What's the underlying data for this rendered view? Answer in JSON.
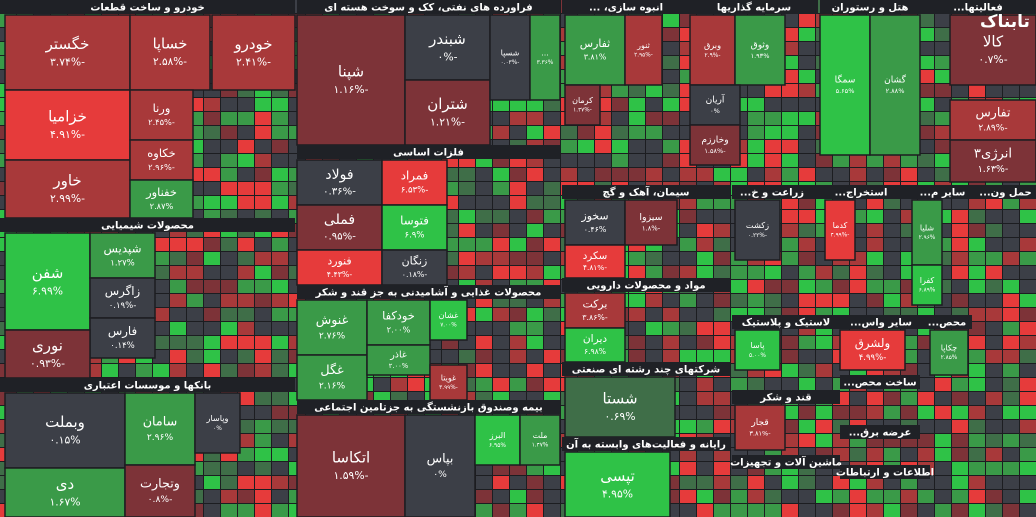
{
  "chart_data": {
    "type": "treemap",
    "watermark": "تابناک",
    "sectors": [
      {
        "name": "خودرو و ساخت قطعات",
        "tiles": [
          {
            "name": "خگستر",
            "value": -3.74,
            "value_label": "-۳.۷۴%"
          },
          {
            "name": "خساپا",
            "value": -2.58,
            "value_label": "-۲.۵۸%"
          },
          {
            "name": "خودرو",
            "value": -2.41,
            "value_label": "-۲.۴۱%"
          },
          {
            "name": "خزامیا",
            "value": -4.91,
            "value_label": "-۴.۹۱%"
          },
          {
            "name": "خاور",
            "value": -2.99,
            "value_label": "-۲.۹۹%"
          },
          {
            "name": "ورنا",
            "value": -2.45,
            "value_label": "-۲.۴۵%"
          },
          {
            "name": "خکاوه",
            "value": -2.96,
            "value_label": "-۲.۹۶%"
          },
          {
            "name": "خفناور",
            "value": 2.87,
            "value_label": "۲.۸۷%"
          }
        ]
      },
      {
        "name": "محصولات شیمیایی",
        "tiles": [
          {
            "name": "شفن",
            "value": 6.99,
            "value_label": "۶.۹۹%"
          },
          {
            "name": "شپدیس",
            "value": 1.27,
            "value_label": "۱.۲۷%"
          },
          {
            "name": "زاگرس",
            "value": -0.19,
            "value_label": "-۰.۱۹%"
          },
          {
            "name": "فارس",
            "value": 0.14,
            "value_label": "۰.۱۴%"
          },
          {
            "name": "نوری",
            "value": -0.93,
            "value_label": "-۰.۹۳%"
          }
        ]
      },
      {
        "name": "بانکها و موسسات اعتباری",
        "tiles": [
          {
            "name": "وبملت",
            "value": 0.15,
            "value_label": "۰.۱۵%"
          },
          {
            "name": "دی",
            "value": 1.67,
            "value_label": "۱.۶۷%"
          },
          {
            "name": "سامان",
            "value": 2.96,
            "value_label": "۲.۹۶%"
          },
          {
            "name": "وتجارت",
            "value": -0.8,
            "value_label": "-۰.۸%"
          },
          {
            "name": "وپاسار",
            "value": 0,
            "value_label": "۰%"
          }
        ]
      },
      {
        "name": "فراورده های نفتی، کک و سوخت هسته ای",
        "tiles": [
          {
            "name": "شپنا",
            "value": -1.16,
            "value_label": "-۱.۱۶%"
          },
          {
            "name": "شبندر",
            "value": 0,
            "value_label": "-۰%"
          },
          {
            "name": "شتران",
            "value": -1.21,
            "value_label": "-۱.۲۱%"
          },
          {
            "name": "شسپا",
            "value": -0.03,
            "value_label": "-۰.۰۳%"
          },
          {
            "name": "...",
            "value": 3.36,
            "value_label": "۳.۳۶%"
          }
        ]
      },
      {
        "name": "فلزات اساسی",
        "tiles": [
          {
            "name": "فولاد",
            "value": -0.36,
            "value_label": "-۰.۳۶%"
          },
          {
            "name": "فملی",
            "value": -0.95,
            "value_label": "-۰.۹۵%"
          },
          {
            "name": "فنورد",
            "value": -4.43,
            "value_label": "-۴.۴۳%"
          },
          {
            "name": "فمراد",
            "value": -6.53,
            "value_label": "-۶.۵۳%"
          },
          {
            "name": "فتوسا",
            "value": 6.9,
            "value_label": "۶.۹%"
          },
          {
            "name": "زنگان",
            "value": -0.18,
            "value_label": "-۰.۱۸%"
          }
        ]
      },
      {
        "name": "محصولات غذایی و آشامیدنی به جز قند و شکر",
        "tiles": [
          {
            "name": "غنوش",
            "value": 2.76,
            "value_label": "۲.۷۶%"
          },
          {
            "name": "غگل",
            "value": 2.16,
            "value_label": "۲.۱۶%"
          },
          {
            "name": "خودکفا",
            "value": 2.0,
            "value_label": "۲.۰۰%"
          },
          {
            "name": "غاذر",
            "value": 2.0,
            "value_label": "۲.۰۰%"
          },
          {
            "name": "غشان",
            "value": 7.0,
            "value_label": "۷.۰۰%"
          },
          {
            "name": "غویتا",
            "value": -3.99,
            "value_label": "-۳.۹۹%"
          }
        ]
      },
      {
        "name": "بیمه وصندوق بازنشستگی به جزتامین اجتماعی",
        "tiles": [
          {
            "name": "اتکاسا",
            "value": -1.59,
            "value_label": "-۱.۵۹%"
          },
          {
            "name": "بپاس",
            "value": 0,
            "value_label": "۰%"
          },
          {
            "name": "البرز",
            "value": 6.95,
            "value_label": "۶.۹۵%"
          },
          {
            "name": "ملت",
            "value": 1.47,
            "value_label": "۱.۴۷%"
          }
        ]
      },
      {
        "name": "انبوه سازی، ...",
        "tiles": [
          {
            "name": "ثفارس",
            "value": 3.81,
            "value_label": "۳.۸۱%"
          },
          {
            "name": "ثنور",
            "value": -2.95,
            "value_label": "-۲.۹۵%"
          },
          {
            "name": "کرمان",
            "value": -1.47,
            "value_label": "-۱.۴۷%"
          }
        ]
      },
      {
        "name": "سرمایه گذاریها",
        "tiles": [
          {
            "name": "وبرق",
            "value": -2.9,
            "value_label": "-۲.۹%"
          },
          {
            "name": "وثوق",
            "value": 1.93,
            "value_label": "۱.۹۳%"
          },
          {
            "name": "آریان",
            "value": 0,
            "value_label": "۰%"
          },
          {
            "name": "وخارزم",
            "value": -1.58,
            "value_label": "-۱.۵۸%"
          }
        ]
      },
      {
        "name": "هتل و رستوران",
        "tiles": [
          {
            "name": "سمگا",
            "value": 5.65,
            "value_label": "۵.۶۵%"
          },
          {
            "name": "گشان",
            "value": 2.88,
            "value_label": "۲.۸۸%"
          }
        ]
      },
      {
        "name": "فعالیتها...",
        "tiles": [
          {
            "name": "کالا",
            "value": -0.7,
            "value_label": "-۰.۷%"
          },
          {
            "name": "تفارس",
            "value": -2.89,
            "value_label": "-۲.۸۹%"
          },
          {
            "name": "انرژی۳",
            "value": -1.63,
            "value_label": "-۱.۶۳%"
          }
        ]
      },
      {
        "name": "سیمان، آهک و گچ",
        "tiles": [
          {
            "name": "سخوز",
            "value": 0.46,
            "value_label": "۰.۴۶%"
          },
          {
            "name": "سیزوا",
            "value": -1.8,
            "value_label": "-۱.۸%"
          },
          {
            "name": "سکرد",
            "value": -4.81,
            "value_label": "-۴.۸۱%"
          }
        ]
      },
      {
        "name": "مواد و محصولات دارویی",
        "tiles": [
          {
            "name": "برکت",
            "value": -3.86,
            "value_label": "-۳.۸۶%"
          },
          {
            "name": "دیران",
            "value": 6.98,
            "value_label": "۶.۹۸%"
          }
        ]
      },
      {
        "name": "شرکتهای چند رشته ای صنعتی",
        "tiles": [
          {
            "name": "شستا",
            "value": 0.69,
            "value_label": "۰.۶۹%"
          }
        ]
      },
      {
        "name": "رایانه و فعالیت‌های وابسته به آن",
        "tiles": [
          {
            "name": "تپسی",
            "value": 4.95,
            "value_label": "۴.۹۵%"
          }
        ]
      },
      {
        "name": "زراعت و خ...",
        "tiles": [
          {
            "name": "زکشت",
            "value": -0.22,
            "value_label": "-۰.۲۲%"
          }
        ]
      },
      {
        "name": "استخراج...",
        "tiles": [
          {
            "name": "کدما",
            "value": -4.99,
            "value_label": "-۴.۹۹%"
          }
        ]
      },
      {
        "name": "سایر م...",
        "tiles": [
          {
            "name": "شلیا",
            "value": 2.96,
            "value_label": "۲.۹۶%"
          },
          {
            "name": "کفرا",
            "value": 6.89,
            "value_label": "۶.۸۹%"
          }
        ]
      },
      {
        "name": "لاستیک و پلاستیک",
        "tiles": [
          {
            "name": "پاسا",
            "value": 5.0,
            "value_label": "۵.۰۰%"
          }
        ]
      },
      {
        "name": "سایر واس...",
        "tiles": [
          {
            "name": "ولشرق",
            "value": -4.99,
            "value_label": "-۴.۹۹%"
          }
        ]
      },
      {
        "name": "محص...",
        "tiles": [
          {
            "name": "چکاپا",
            "value": 2.85,
            "value_label": "۲.۸۵%"
          }
        ]
      },
      {
        "name": "قند و شکر",
        "tiles": [
          {
            "name": "قجار",
            "value": -3.81,
            "value_label": "-۳.۸۱%"
          }
        ]
      },
      {
        "name": "ماشین آلات و تجهیزات",
        "tiles": []
      },
      {
        "name": "اطلاعات و ارتباطات",
        "tiles": []
      },
      {
        "name": "ساخت محص...",
        "tiles": []
      },
      {
        "name": "حمل ون...",
        "tiles": []
      },
      {
        "name": "عرضه برق...",
        "tiles": []
      }
    ]
  }
}
